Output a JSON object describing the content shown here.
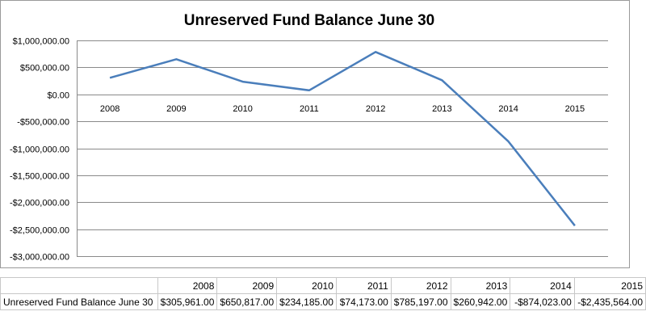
{
  "chart_data": {
    "type": "line",
    "title": "Unreserved Fund Balance June 30",
    "categories": [
      "2008",
      "2009",
      "2010",
      "2011",
      "2012",
      "2013",
      "2014",
      "2015"
    ],
    "series": [
      {
        "name": "Unreserved Fund Balance June 30",
        "values": [
          305961,
          650817,
          234185,
          74173,
          785197,
          260942,
          -874023,
          -2435564
        ]
      }
    ],
    "ylim": [
      -3000000,
      1000000
    ],
    "yticks": [
      1000000,
      500000,
      0,
      -500000,
      -1000000,
      -1500000,
      -2000000,
      -2500000,
      -3000000
    ],
    "ytick_labels": [
      "$1,000,000.00",
      "$500,000.00",
      "$0.00",
      "-$500,000.00",
      "-$1,000,000.00",
      "-$1,500,000.00",
      "-$2,000,000.00",
      "-$2,500,000.00",
      "-$3,000,000.00"
    ],
    "grid": true,
    "line_color": "#4a7ebb",
    "xlabel": "",
    "ylabel": ""
  },
  "table": {
    "header": [
      "",
      "2008",
      "2009",
      "2010",
      "2011",
      "2012",
      "2013",
      "2014",
      "2015"
    ],
    "row_label": "Unreserved Fund Balance June 30",
    "row_values": [
      "$305,961.00",
      "$650,817.00",
      "$234,185.00",
      "$74,173.00",
      "$785,197.00",
      "$260,942.00",
      "-$874,023.00",
      "-$2,435,564.00"
    ]
  }
}
